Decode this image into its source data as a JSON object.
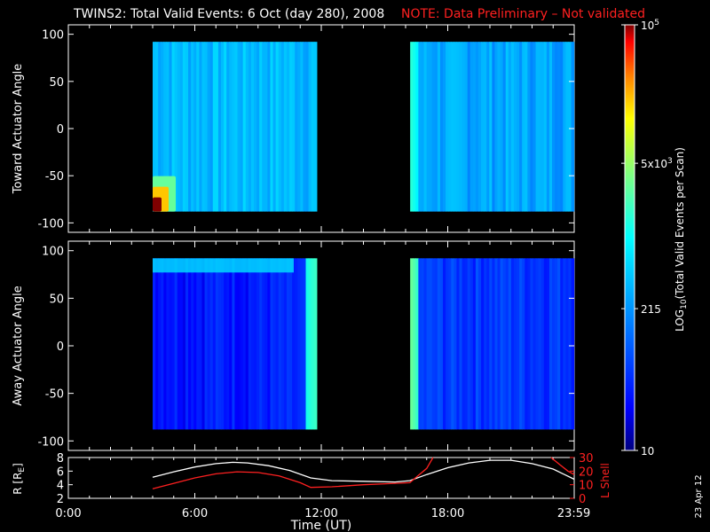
{
  "title": {
    "main": "TWINS2: Total Valid Events:  6 Oct (day 280), 2008",
    "note": "NOTE: Data Preliminary – Not validated",
    "note_color": "#ff2020"
  },
  "side_date": "23 Apr 12",
  "colorbar": {
    "label": "LOG10(Total Valid Events per Scan)",
    "label_prefix": "LOG",
    "label_sub": "10",
    "label_rest": "(Total Valid Events per Scan)",
    "ticks": [
      {
        "value": 100000,
        "base": "10",
        "exp": "5"
      },
      {
        "value": 5000,
        "base": "5x10",
        "exp": "3"
      },
      {
        "value": 215,
        "base": "215",
        "exp": ""
      },
      {
        "value": 10,
        "base": "10",
        "exp": ""
      }
    ],
    "scale": "log",
    "range": [
      10,
      100000
    ],
    "colormap": [
      "#00007f",
      "#0000ff",
      "#0080ff",
      "#00ffff",
      "#80ff80",
      "#ffff00",
      "#ff8000",
      "#ff0000",
      "#7f0000"
    ]
  },
  "chart_data": [
    {
      "type": "heatmap",
      "panel": "toward",
      "ylabel": "Toward Actuator Angle",
      "ylim": [
        -110,
        110
      ],
      "yticks": [
        "100",
        "50",
        "0",
        "-50",
        "-100"
      ],
      "x_range_hours": [
        0,
        24
      ],
      "y_data_range": [
        -88,
        92
      ],
      "data_blocks": [
        {
          "start": "04:00",
          "end": "11:47",
          "typical_value": 400,
          "low_corner_max": 100000
        },
        {
          "start": "16:13",
          "end": "23:59",
          "typical_value": 300,
          "left_edge_value": 1500
        }
      ]
    },
    {
      "type": "heatmap",
      "panel": "away",
      "ylabel": "Away Actuator Angle",
      "ylim": [
        -110,
        110
      ],
      "yticks": [
        "100",
        "50",
        "0",
        "-50",
        "-100"
      ],
      "x_range_hours": [
        0,
        24
      ],
      "y_data_range": [
        -88,
        92
      ],
      "data_blocks": [
        {
          "start": "04:00",
          "end": "11:47",
          "typical_value": 40,
          "right_edge_value": 2000
        },
        {
          "start": "16:13",
          "end": "23:59",
          "typical_value": 60,
          "left_edge_value": 3000
        }
      ]
    },
    {
      "type": "line",
      "panel": "ephemeris",
      "xlabel": "Time (UT)",
      "xticks": [
        "0:00",
        "6:00",
        "12:00",
        "18:00",
        "23:59"
      ],
      "x_hours": [
        0,
        6,
        12,
        18,
        23.983
      ],
      "ylabel_left": "R [RE]",
      "ylabel_left_main": "R [R",
      "ylabel_left_sub": "E",
      "ylabel_left_end": "]",
      "ylim_left": [
        2,
        8
      ],
      "yticks_left": [
        "8",
        "6",
        "4",
        "2"
      ],
      "ylabel_right": "L Shell",
      "ylim_right": [
        0,
        30
      ],
      "yticks_right": [
        "30",
        "20",
        "10",
        "0"
      ],
      "series": [
        {
          "name": "R [RE]",
          "axis": "left",
          "color": "#ffffff",
          "x": [
            4.0,
            5.0,
            6.0,
            7.0,
            7.8,
            8.5,
            9.5,
            10.5,
            11.5,
            12.5,
            14.0,
            15.5,
            16.2,
            17.0,
            18.0,
            19.0,
            20.0,
            21.0,
            22.0,
            23.0,
            24.0
          ],
          "y": [
            5.1,
            5.9,
            6.6,
            7.1,
            7.3,
            7.2,
            6.8,
            6.1,
            5.0,
            4.6,
            4.5,
            4.4,
            4.6,
            5.5,
            6.5,
            7.2,
            7.6,
            7.6,
            7.1,
            6.3,
            4.8
          ]
        },
        {
          "name": "L Shell",
          "axis": "right",
          "color": "#ff2020",
          "x": [
            4.0,
            5.0,
            6.0,
            7.0,
            8.0,
            9.0,
            10.0,
            11.0,
            11.5,
            12.5,
            14.0,
            15.5,
            16.2,
            17.0,
            17.3
          ],
          "y": [
            7.0,
            11.0,
            15.0,
            18.0,
            19.5,
            19.0,
            16.5,
            11.5,
            8.0,
            8.5,
            10.0,
            11.0,
            11.5,
            22.0,
            30.0
          ]
        },
        {
          "name": "L Shell (late)",
          "axis": "right",
          "color": "#ff2020",
          "x": [
            22.9,
            23.3,
            23.7,
            24.0
          ],
          "y": [
            30.0,
            25.0,
            20.0,
            17.5
          ]
        }
      ]
    }
  ]
}
